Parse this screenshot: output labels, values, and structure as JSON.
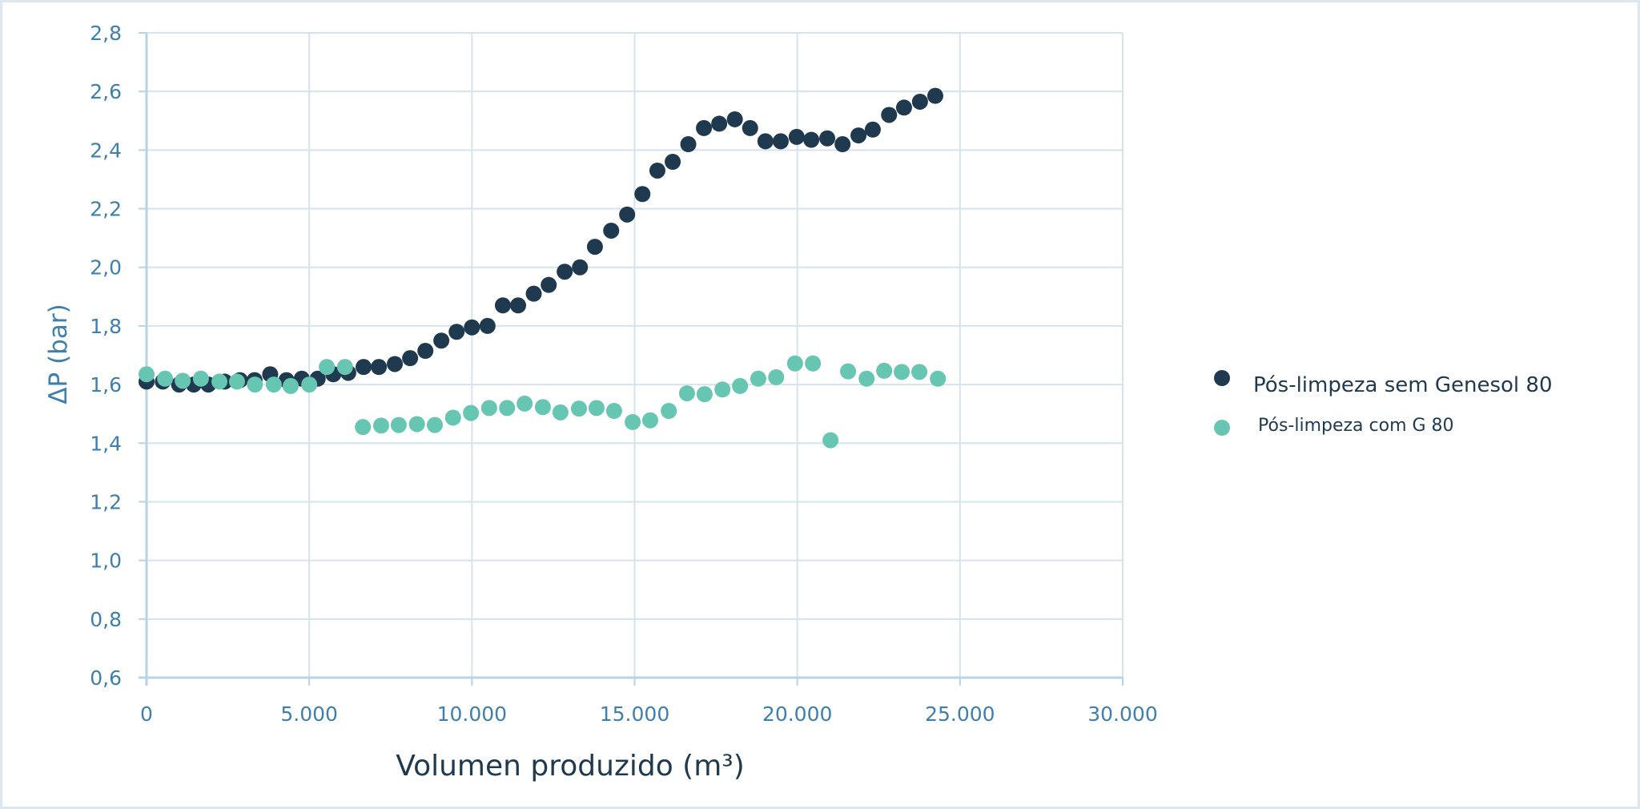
{
  "chart_data": {
    "type": "scatter",
    "title": "",
    "xlabel": "Volumen produzido (m³)",
    "ylabel": "ΔP (bar)",
    "xlim": [
      0,
      30000
    ],
    "ylim": [
      0.6,
      2.8
    ],
    "x_ticks": [
      0,
      5000,
      10000,
      15000,
      20000,
      25000,
      30000
    ],
    "x_tick_labels": [
      "0",
      "5.000",
      "10.000",
      "15.000",
      "20.000",
      "25.000",
      "30.000"
    ],
    "y_ticks": [
      0.6,
      0.8,
      1.0,
      1.2,
      1.4,
      1.6,
      1.8,
      2.0,
      2.2,
      2.4,
      2.6,
      2.8
    ],
    "y_tick_labels": [
      "0,6",
      "0,8",
      "1,0",
      "1,2",
      "1,4",
      "1,6",
      "1,8",
      "2,0",
      "2,2",
      "2,4",
      "2,6",
      "2,8"
    ],
    "grid": true,
    "legend_position": "right",
    "series": [
      {
        "name": "Pós-limpeza sem Genesol 80",
        "color": "#1f3a4f",
        "x": [
          0,
          500,
          1000,
          1450,
          1900,
          2400,
          2870,
          3320,
          3800,
          4300,
          4770,
          5260,
          5740,
          6200,
          6670,
          7140,
          7630,
          8100,
          8570,
          9060,
          9530,
          10000,
          10480,
          10950,
          11420,
          11900,
          12360,
          12850,
          13320,
          13780,
          14280,
          14770,
          15240,
          15700,
          16170,
          16650,
          17130,
          17600,
          18080,
          18550,
          19020,
          19490,
          19980,
          20430,
          20920,
          21390,
          21880,
          22320,
          22820,
          23280,
          23770,
          24240
        ],
        "y": [
          1.61,
          1.61,
          1.6,
          1.6,
          1.6,
          1.61,
          1.615,
          1.615,
          1.635,
          1.615,
          1.62,
          1.62,
          1.635,
          1.64,
          1.66,
          1.66,
          1.67,
          1.69,
          1.715,
          1.75,
          1.78,
          1.795,
          1.8,
          1.87,
          1.87,
          1.91,
          1.94,
          1.985,
          2.0,
          2.07,
          2.125,
          2.18,
          2.25,
          2.33,
          2.36,
          2.42,
          2.475,
          2.49,
          2.505,
          2.475,
          2.43,
          2.43,
          2.445,
          2.435,
          2.44,
          2.42,
          2.45,
          2.47,
          2.52,
          2.545,
          2.565,
          2.585
        ]
      },
      {
        "name": "Pós-limpeza com G 80",
        "color": "#66c6b1",
        "x": [
          0,
          570,
          1110,
          1670,
          2240,
          2780,
          3330,
          3910,
          4430,
          5000,
          5540,
          6100,
          6650,
          7210,
          7750,
          8310,
          8860,
          9420,
          9970,
          10530,
          11080,
          11620,
          12180,
          12720,
          13290,
          13830,
          14370,
          14940,
          15480,
          16050,
          16610,
          17150,
          17700,
          18240,
          18800,
          19350,
          19930,
          20480,
          21020,
          21560,
          22130,
          22670,
          23210,
          23750,
          24320
        ],
        "y": [
          1.635,
          1.62,
          1.613,
          1.62,
          1.61,
          1.61,
          1.6,
          1.6,
          1.595,
          1.6,
          1.66,
          1.66,
          1.455,
          1.46,
          1.462,
          1.465,
          1.462,
          1.487,
          1.503,
          1.52,
          1.52,
          1.535,
          1.523,
          1.505,
          1.518,
          1.52,
          1.51,
          1.472,
          1.478,
          1.51,
          1.57,
          1.567,
          1.583,
          1.595,
          1.62,
          1.625,
          1.672,
          1.672,
          1.41,
          1.645,
          1.62,
          1.647,
          1.643,
          1.643,
          1.62
        ]
      }
    ]
  },
  "legend": {
    "items": [
      {
        "label": "Pós-limpeza sem Genesol 80",
        "color": "#1f3a4f"
      },
      {
        "label": "Pós-limpeza com G 80",
        "color": "#66c6b1"
      }
    ]
  },
  "axes": {
    "x_title": "Volumen produzido (m³)",
    "y_title": "ΔP (bar)"
  },
  "colors": {
    "grid": "#d6e3ee",
    "axis": "#b9d3e6",
    "tick_label": "#3f7fae",
    "title": "#1f3a4f"
  }
}
